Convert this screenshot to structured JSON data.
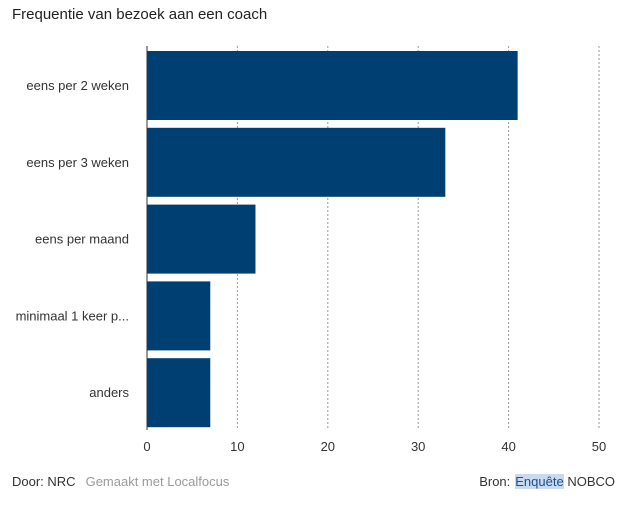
{
  "chart_data": {
    "type": "bar",
    "orientation": "horizontal",
    "title": "Frequentie van bezoek aan een coach",
    "categories": [
      "eens per 2 weken",
      "eens per 3 weken",
      "eens per maand",
      "minimaal 1 keer p...",
      "anders"
    ],
    "values": [
      41,
      33,
      12,
      7,
      7
    ],
    "xlim": [
      0,
      50
    ],
    "xticks": [
      0,
      10,
      20,
      30,
      40,
      50
    ],
    "grid": true,
    "bar_color": "#003f72"
  },
  "footer": {
    "by": "Door: NRC",
    "made_with": "Gemaakt met Localfocus",
    "source_label": "Bron:",
    "source_highlight": "Enquête",
    "source_rest": "NOBCO"
  }
}
